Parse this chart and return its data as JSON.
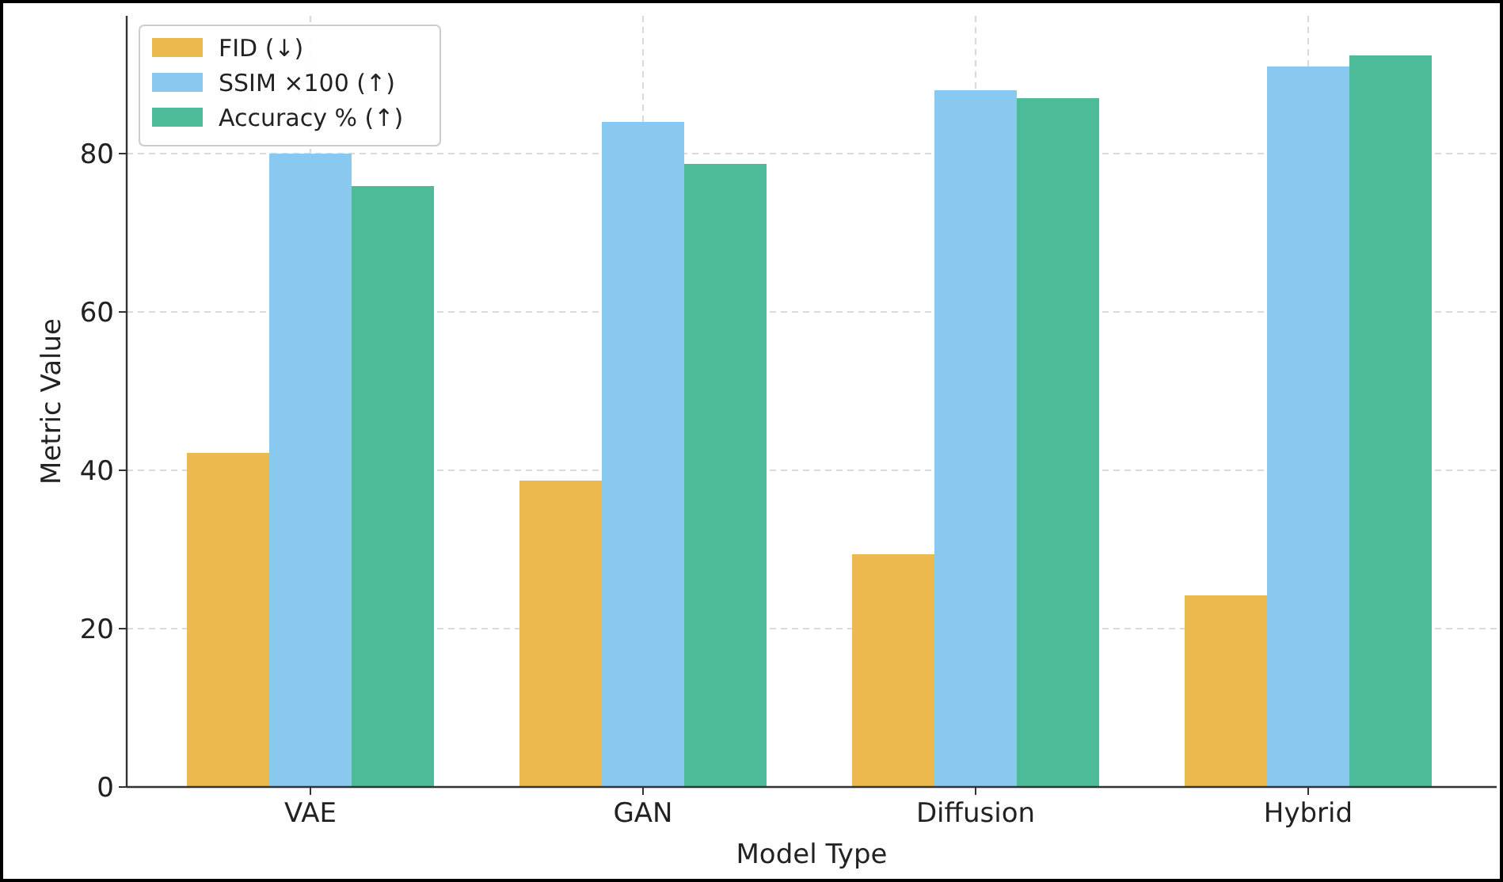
{
  "chart_data": {
    "type": "bar",
    "xlabel": "Model Type",
    "ylabel": "Metric Value",
    "categories": [
      "VAE",
      "GAN",
      "Diffusion",
      "Hybrid"
    ],
    "series": [
      {
        "name": "FID (↓)",
        "color": "#ebb94d",
        "values": [
          42.2,
          38.7,
          29.4,
          24.2
        ]
      },
      {
        "name": "SSIM ×100 (↑)",
        "color": "#89c8ef",
        "values": [
          80,
          84,
          88,
          91
        ]
      },
      {
        "name": "Accuracy % (↑)",
        "color": "#4dba9a",
        "values": [
          75.9,
          78.7,
          87,
          92.4
        ]
      }
    ],
    "ylim": [
      0,
      97.4
    ],
    "yticks": [
      0,
      20,
      40,
      60,
      80
    ],
    "grid": true,
    "legend": "top left"
  }
}
